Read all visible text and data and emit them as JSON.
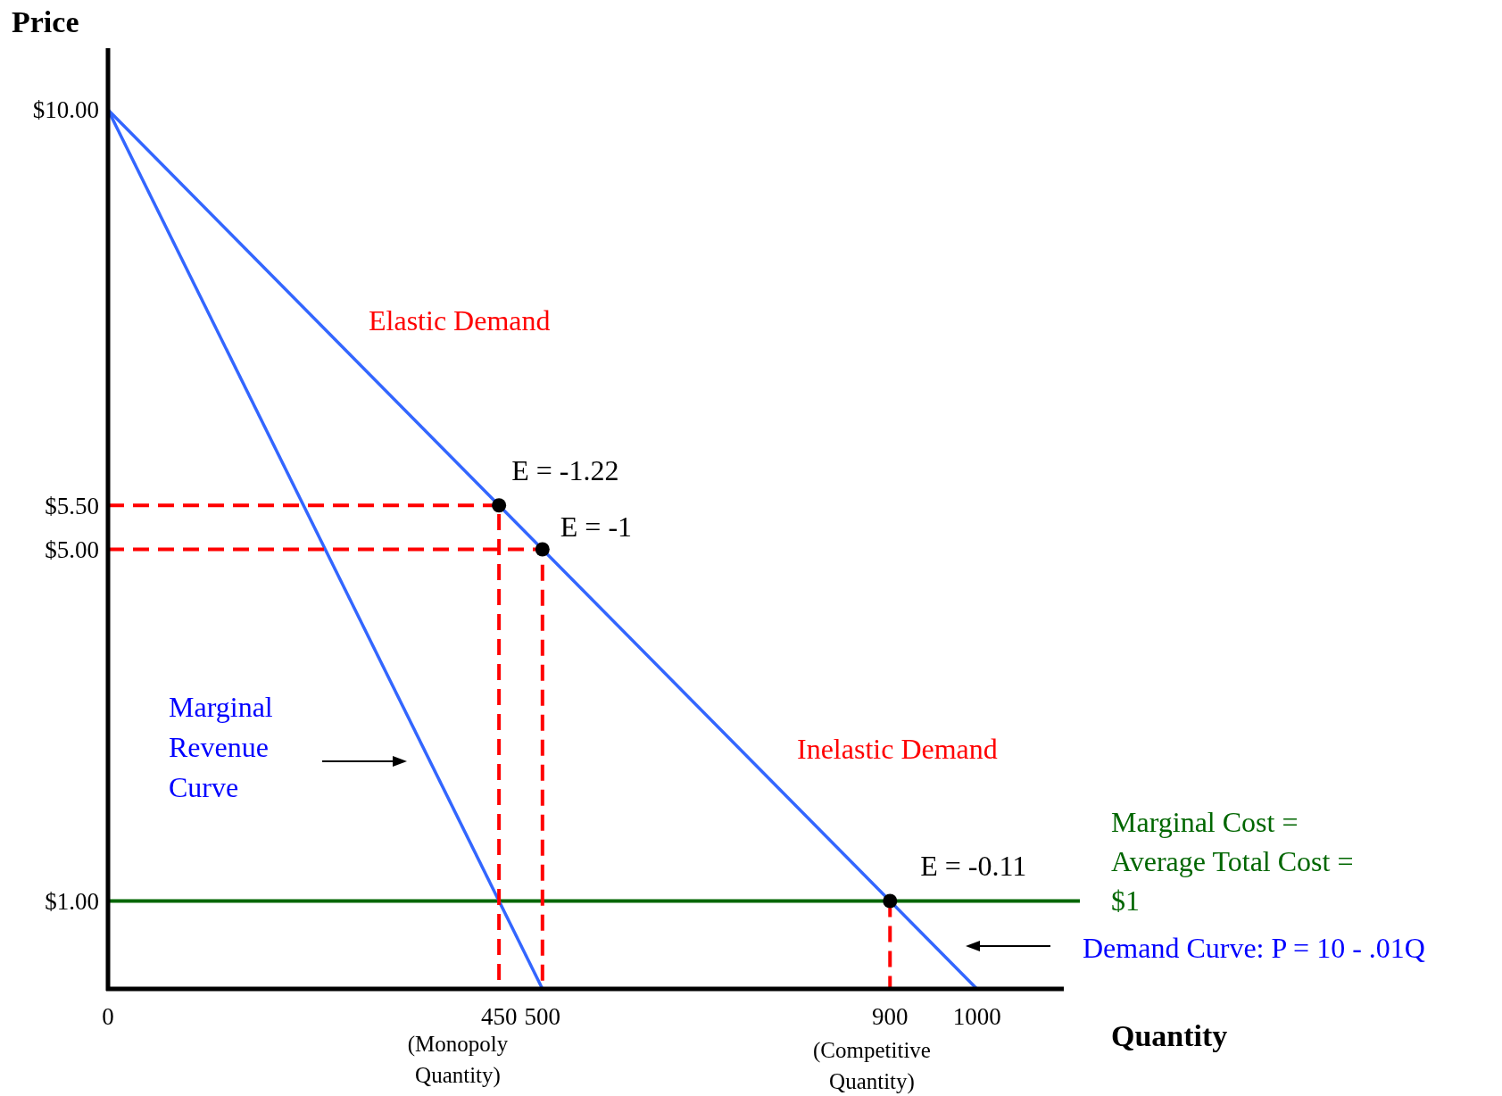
{
  "chart_data": {
    "type": "line",
    "xlabel": "Quantity",
    "ylabel": "Price",
    "xlim": [
      0,
      1100
    ],
    "ylim": [
      0,
      10.7
    ],
    "xticks": [
      0,
      450,
      500,
      900,
      1000
    ],
    "yticks": [
      {
        "value": 1,
        "label": "$1.00"
      },
      {
        "value": 5,
        "label": "$5.00"
      },
      {
        "value": 5.5,
        "label": "$5.50"
      },
      {
        "value": 10,
        "label": "$10.00"
      }
    ],
    "grid": false,
    "series": [
      {
        "color": "#3366ff",
        "x": [
          0,
          1000
        ],
        "values": [
          10,
          0
        ]
      },
      {
        "color": "#3366ff",
        "x": [
          0,
          500
        ],
        "values": [
          10,
          0
        ]
      },
      {
        "color": "#ff0000",
        "line_style": "dashed",
        "x": [
          0,
          450,
          450
        ],
        "values": [
          5.5,
          5.5,
          0
        ]
      },
      {
        "color": "#ff0000",
        "line_style": "dashed",
        "x": [
          0,
          500,
          500
        ],
        "values": [
          5,
          5,
          0
        ]
      },
      {
        "color": "#ff0000",
        "line_style": "dashed",
        "x": [
          900,
          900
        ],
        "values": [
          1,
          0
        ]
      },
      {
        "type": "scatter",
        "marker": "circle",
        "color": "#000000",
        "x": [
          450,
          500,
          900
        ],
        "values": [
          5.5,
          5,
          1
        ]
      }
    ],
    "ref_lines": [
      {
        "axis": "y",
        "value": 1,
        "color": "#006600"
      }
    ],
    "annotations": [
      {
        "text": "E = -1.22",
        "x": 450,
        "y": 5.5
      },
      {
        "text": "E = -1",
        "x": 500,
        "y": 5
      },
      {
        "text": "E = -0.11",
        "x": 900,
        "y": 1
      },
      "Elastic Demand",
      "Inelastic Demand",
      "Marginal\nRevenue\nCurve",
      "Marginal Cost =\nAverage Total Cost =\n$1",
      "Demand Curve: P = 10 - .01Q",
      "(Monopoly\nQuantity)",
      "(Competitive\nQuantity)"
    ]
  }
}
